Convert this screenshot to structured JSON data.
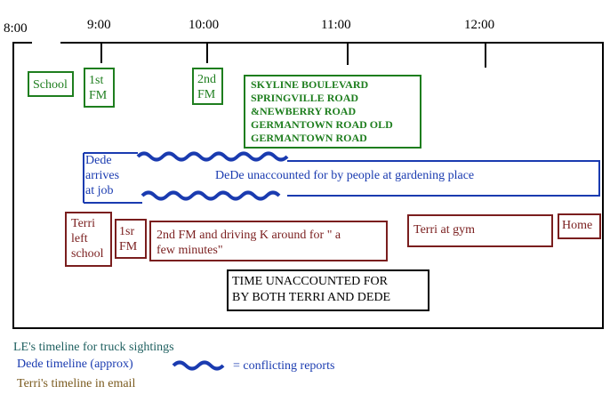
{
  "hours": [
    "8:00",
    "9:00",
    "10:00",
    "11:00",
    "12:00"
  ],
  "colors": {
    "green": "#1e7e1e",
    "blue": "#1a3bb0",
    "maroon": "#7a1e1e",
    "legend_le": "#1e5f5f",
    "legend_terri": "#7a5a1e"
  },
  "le_timeline": {
    "school": "School",
    "first_fm": "1st\nFM",
    "second_fm": "2nd\nFM",
    "roads": "SKYLINE BOULEVARD\nSPRINGVILLE ROAD\n&NEWBERRY ROAD\nGERMANTOWN ROAD OLD\nGERMANTOWN ROAD"
  },
  "dede_timeline": {
    "arrives": "Dede\narrives\nat job",
    "unaccounted": "DeDe unaccounted for by people at gardening place"
  },
  "terri_timeline": {
    "left_school": "Terri\nleft\nschool",
    "first_fm": "1sr\nFM",
    "second_fm": "2nd FM and driving K around for \" a\nfew minutes\"",
    "gym": "Terri at gym",
    "home": "Home"
  },
  "both_unaccounted": "TIME UNACCOUNTED FOR\nBY  BOTH TERRI AND DEDE",
  "legend": {
    "le": "LE's timeline for truck sightings",
    "dede": "Dede timeline (approx)",
    "conflicting": "= conflicting reports",
    "terri": "Terri's timeline in email"
  }
}
